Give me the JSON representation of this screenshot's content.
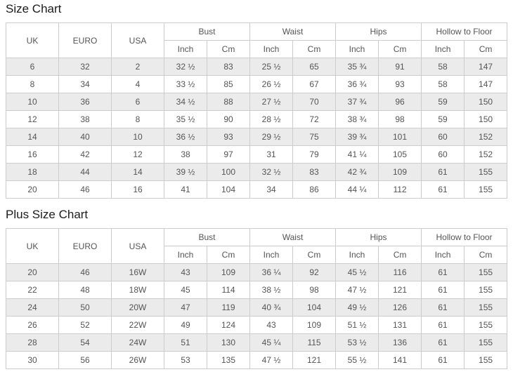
{
  "colors": {
    "background": "#ffffff",
    "table_border": "#cccccc",
    "row_stripe": "#ebebeb",
    "cell_text": "#555555",
    "title_text": "#1c1c1c"
  },
  "tables": [
    {
      "title": "Size Chart",
      "header": {
        "uk": "UK",
        "euro": "EURO",
        "usa": "USA",
        "groups": [
          "Bust",
          "Waist",
          "Hips",
          "Hollow to Floor"
        ],
        "sub": [
          "Inch",
          "Cm"
        ]
      },
      "rows": [
        [
          "6",
          "32",
          "2",
          "32 ½",
          "83",
          "25 ½",
          "65",
          "35 ¾",
          "91",
          "58",
          "147"
        ],
        [
          "8",
          "34",
          "4",
          "33 ½",
          "85",
          "26 ½",
          "67",
          "36 ¾",
          "93",
          "58",
          "147"
        ],
        [
          "10",
          "36",
          "6",
          "34 ½",
          "88",
          "27 ½",
          "70",
          "37 ¾",
          "96",
          "59",
          "150"
        ],
        [
          "12",
          "38",
          "8",
          "35 ½",
          "90",
          "28 ½",
          "72",
          "38 ¾",
          "98",
          "59",
          "150"
        ],
        [
          "14",
          "40",
          "10",
          "36 ½",
          "93",
          "29 ½",
          "75",
          "39 ¾",
          "101",
          "60",
          "152"
        ],
        [
          "16",
          "42",
          "12",
          "38",
          "97",
          "31",
          "79",
          "41 ¼",
          "105",
          "60",
          "152"
        ],
        [
          "18",
          "44",
          "14",
          "39 ½",
          "100",
          "32 ½",
          "83",
          "42 ¾",
          "109",
          "61",
          "155"
        ],
        [
          "20",
          "46",
          "16",
          "41",
          "104",
          "34",
          "86",
          "44 ¼",
          "112",
          "61",
          "155"
        ]
      ]
    },
    {
      "title": "Plus Size Chart",
      "header": {
        "uk": "UK",
        "euro": "EURO",
        "usa": "USA",
        "groups": [
          "Bust",
          "Waist",
          "Hips",
          "Hollow to Floor"
        ],
        "sub": [
          "Inch",
          "Cm"
        ]
      },
      "rows": [
        [
          "20",
          "46",
          "16W",
          "43",
          "109",
          "36 ¼",
          "92",
          "45 ½",
          "116",
          "61",
          "155"
        ],
        [
          "22",
          "48",
          "18W",
          "45",
          "114",
          "38 ½",
          "98",
          "47 ½",
          "121",
          "61",
          "155"
        ],
        [
          "24",
          "50",
          "20W",
          "47",
          "119",
          "40 ¾",
          "104",
          "49 ½",
          "126",
          "61",
          "155"
        ],
        [
          "26",
          "52",
          "22W",
          "49",
          "124",
          "43",
          "109",
          "51 ½",
          "131",
          "61",
          "155"
        ],
        [
          "28",
          "54",
          "24W",
          "51",
          "130",
          "45 ¼",
          "115",
          "53 ½",
          "136",
          "61",
          "155"
        ],
        [
          "30",
          "56",
          "26W",
          "53",
          "135",
          "47 ½",
          "121",
          "55 ½",
          "141",
          "61",
          "155"
        ]
      ]
    }
  ]
}
